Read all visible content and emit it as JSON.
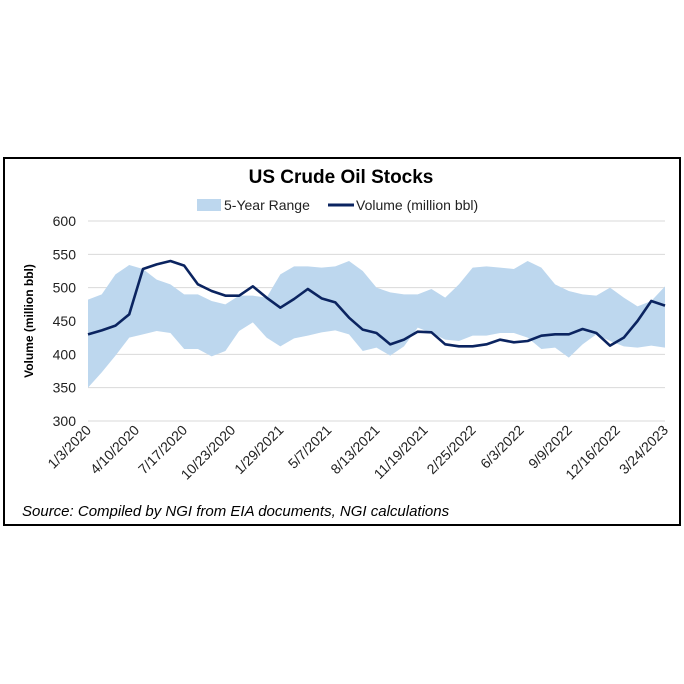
{
  "chart_data": {
    "type": "area",
    "title": "US Crude Oil Stocks",
    "ylabel": "Volume (million bbl)",
    "xlabel": "",
    "ylim": [
      300,
      600
    ],
    "yticks": [
      "300",
      "350",
      "400",
      "450",
      "500",
      "550",
      "600"
    ],
    "xtick_labels": [
      "1/3/2020",
      "4/10/2020",
      "7/17/2020",
      "10/23/2020",
      "1/29/2021",
      "5/7/2021",
      "8/13/2021",
      "11/19/2021",
      "2/25/2022",
      "6/3/2022",
      "9/9/2022",
      "12/16/2022",
      "3/24/2023"
    ],
    "grid": "horizontal",
    "legend": "top",
    "source": "Source: Compiled by NGI from EIA documents, NGI calculations",
    "colors": {
      "range": "#bdd7ee",
      "line": "#0b2460"
    },
    "x": [
      "1/3/2020",
      "1/31/2020",
      "2/28/2020",
      "3/27/2020",
      "4/24/2020",
      "5/22/2020",
      "6/19/2020",
      "7/17/2020",
      "8/14/2020",
      "9/11/2020",
      "10/9/2020",
      "11/6/2020",
      "12/4/2020",
      "1/1/2021",
      "1/29/2021",
      "2/26/2021",
      "3/26/2021",
      "4/23/2021",
      "5/21/2021",
      "6/18/2021",
      "7/16/2021",
      "8/13/2021",
      "9/10/2021",
      "10/8/2021",
      "11/5/2021",
      "12/3/2021",
      "12/31/2021",
      "1/28/2022",
      "2/25/2022",
      "3/25/2022",
      "4/22/2022",
      "5/20/2022",
      "6/17/2022",
      "7/15/2022",
      "8/12/2022",
      "9/9/2022",
      "10/7/2022",
      "11/4/2022",
      "12/2/2022",
      "12/30/2022",
      "1/27/2023",
      "2/24/2023",
      "3/24/2023"
    ],
    "series": [
      {
        "name": "5-Year Range",
        "upper": [
          482,
          490,
          520,
          534,
          528,
          512,
          505,
          490,
          490,
          480,
          475,
          488,
          488,
          485,
          520,
          532,
          532,
          530,
          532,
          540,
          525,
          500,
          493,
          490,
          490,
          498,
          485,
          505,
          530,
          532,
          530,
          528,
          540,
          530,
          505,
          495,
          490,
          488,
          500,
          485,
          472,
          480,
          502
        ],
        "lower": [
          350,
          373,
          398,
          425,
          430,
          435,
          432,
          408,
          408,
          397,
          405,
          435,
          448,
          425,
          412,
          424,
          428,
          433,
          436,
          430,
          405,
          410,
          398,
          412,
          440,
          432,
          422,
          420,
          428,
          428,
          432,
          432,
          425,
          408,
          410,
          395,
          415,
          430,
          420,
          412,
          410,
          413,
          410
        ]
      },
      {
        "name": "Volume (million bbl)",
        "values": [
          430,
          436,
          443,
          460,
          528,
          535,
          540,
          533,
          505,
          495,
          488,
          488,
          502,
          485,
          470,
          483,
          498,
          484,
          478,
          455,
          437,
          432,
          415,
          422,
          434,
          433,
          415,
          412,
          412,
          415,
          422,
          418,
          420,
          428,
          430,
          430,
          438,
          432,
          413,
          425,
          450,
          480,
          473
        ]
      }
    ]
  }
}
